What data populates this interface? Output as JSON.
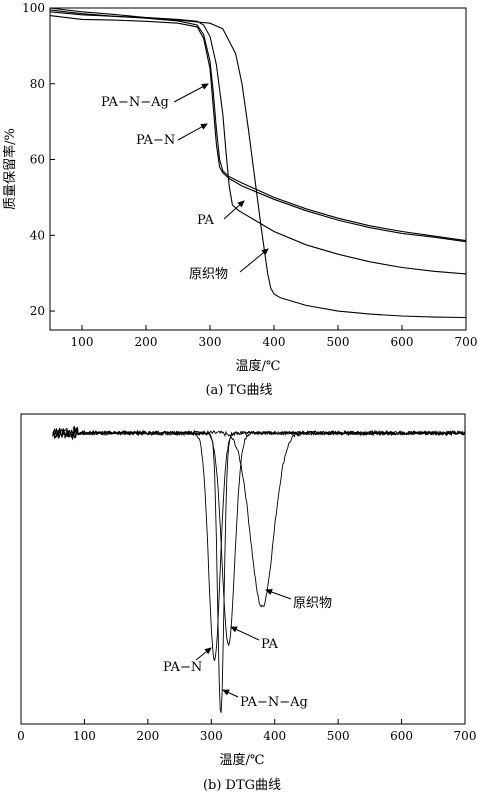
{
  "chart_data": [
    {
      "type": "line",
      "caption": "(a)  TG曲线",
      "xlabel": "温度/℃",
      "ylabel": "质量保留率/%",
      "xlim": [
        50,
        700
      ],
      "ylim": [
        15,
        100
      ],
      "xticks": [
        100,
        200,
        300,
        400,
        500,
        600,
        700
      ],
      "yticks": [
        20,
        40,
        60,
        80,
        100
      ],
      "grid": false,
      "series": [
        {
          "name": "PA−N−Ag",
          "x": [
            50,
            100,
            150,
            200,
            250,
            280,
            290,
            300,
            305,
            310,
            315,
            320,
            330,
            350,
            400,
            450,
            500,
            550,
            600,
            650,
            700
          ],
          "y": [
            99.5,
            98.5,
            97.8,
            97.3,
            96.6,
            95.5,
            93,
            86,
            78,
            68,
            60,
            57,
            55.5,
            53.8,
            50,
            47,
            44.5,
            42.5,
            41,
            39.8,
            38.6
          ]
        },
        {
          "name": "PA−N",
          "x": [
            50,
            100,
            150,
            200,
            250,
            280,
            290,
            300,
            305,
            310,
            315,
            320,
            330,
            350,
            400,
            450,
            500,
            550,
            600,
            650,
            700
          ],
          "y": [
            98,
            97,
            96.8,
            96.5,
            96,
            95,
            92,
            84,
            74,
            64,
            58,
            56.5,
            55,
            53,
            49.5,
            46.5,
            44,
            42,
            40.5,
            39.5,
            38.3
          ]
        },
        {
          "name": "PA",
          "x": [
            50,
            100,
            150,
            200,
            250,
            280,
            290,
            300,
            310,
            320,
            325,
            330,
            335,
            345,
            370,
            400,
            450,
            500,
            550,
            600,
            650,
            700
          ],
          "y": [
            99,
            98.2,
            97.8,
            97.5,
            97,
            96.5,
            95.5,
            92.5,
            85,
            72,
            62,
            53,
            48,
            46.5,
            44,
            41,
            37.5,
            35,
            33,
            31.5,
            30.5,
            29.8
          ]
        },
        {
          "name": "原织物",
          "x": [
            50,
            100,
            150,
            200,
            250,
            280,
            300,
            320,
            340,
            350,
            360,
            370,
            380,
            390,
            395,
            400,
            410,
            450,
            500,
            550,
            600,
            650,
            700
          ],
          "y": [
            100,
            99,
            98.3,
            97.5,
            96.8,
            96.3,
            96,
            94.5,
            88,
            80,
            68,
            55,
            42,
            30,
            26,
            24.5,
            23.5,
            21.5,
            20,
            19.2,
            18.7,
            18.4,
            18.3
          ]
        }
      ],
      "annotations": [
        "PA−N−Ag",
        "PA−N",
        "PA",
        "原织物"
      ]
    },
    {
      "type": "line",
      "caption": "(b)  DTG曲线",
      "xlabel": "温度/℃",
      "xlim": [
        0,
        700
      ],
      "xticks": [
        0,
        100,
        200,
        300,
        400,
        500,
        600,
        700
      ],
      "ylim": [
        -4.6,
        0.3
      ],
      "grid": false,
      "series": [
        {
          "name": "原织物",
          "peak_x": 380,
          "peak_y": -2.75,
          "width": 18,
          "noise": 0.07
        },
        {
          "name": "PA",
          "peak_x": 327,
          "peak_y": -3.35,
          "width": 10,
          "noise": 0.05
        },
        {
          "name": "PA−N",
          "peak_x": 305,
          "peak_y": -3.6,
          "width": 9,
          "noise": 0.05
        },
        {
          "name": "PA−N−Ag",
          "peak_x": 315,
          "peak_y": -4.45,
          "width": 5,
          "noise": 0.05
        }
      ],
      "annotations": [
        "原织物",
        "PA",
        "PA−N",
        "PA−N−Ag"
      ]
    }
  ]
}
